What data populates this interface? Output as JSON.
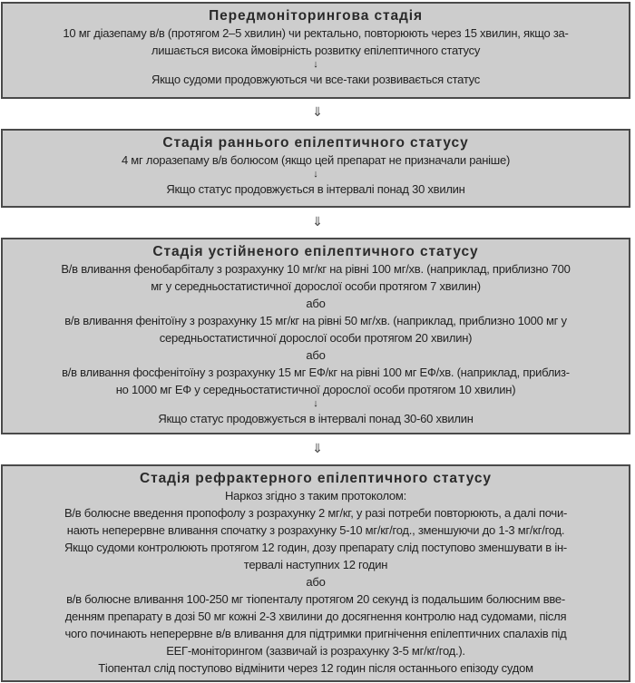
{
  "stages": [
    {
      "title": "Передмоніторингова стадія",
      "lines": [
        "10 мг діазепаму в/в (протягом 2–5 хвилин) чи ректально, повторюють через 15 хвилин, якщо за-",
        "лишається висока ймовірність розвитку епілептичного статусу"
      ],
      "arrow": "↓",
      "condition": "Якщо судоми продовжуються чи все-таки розвивається статус"
    },
    {
      "title": "Стадія раннього епілептичного статусу",
      "lines": [
        "4 мг лоразепаму в/в болюсом (якщо цей препарат не призначали раніше)"
      ],
      "arrow": "↓",
      "condition": "Якщо статус продовжується в інтервалі понад 30 хвилин"
    },
    {
      "title": "Стадія устійненого епілептичного статусу",
      "lines": [
        "В/в вливання фенобарбіталу з розрахунку 10 мг/кг на рівні 100 мг/хв. (наприклад, приблизно 700",
        "мг у середньостатистичної дорослої особи протягом 7 хвилин)",
        "або",
        "в/в вливання фенітоїну з розрахунку 15 мг/кг на рівні 50 мг/хв. (наприклад, приблизно 1000 мг у",
        "середньостатистичної дорослої особи протягом 20 хвилин)",
        "або",
        "в/в вливання фосфенітоїну з розрахунку 15 мг ЕФ/кг на рівні 100 мг ЕФ/хв. (наприклад, приблиз-",
        "но 1000 мг ЕФ у середньостатистичної дорослої особи протягом 10 хвилин)"
      ],
      "arrow": "↓",
      "condition": "Якщо статус продовжується в інтервалі понад 30-60 хвилин"
    },
    {
      "title": "Стадія рефрактерного епілептичного статусу",
      "lines": [
        "Наркоз згідно з таким протоколом:",
        "В/в болюсне введення пропофолу з розрахунку 2 мг/кг, у разі потреби повторюють, а далі почи-",
        "нають неперервне вливання спочатку з розрахунку 5-10 мг/кг/год., зменшуючи до 1-3 мг/кг/год.",
        "Якщо судоми контролюють протягом 12 годин, дозу препарату слід поступово зменшувати в ін-",
        "тервалі наступних 12 годин",
        "або",
        "в/в болюсне вливання 100-250 мг тіопенталу протягом 20 секунд із подальшим болюсним вве-",
        "денням препарату в дозі 50 мг кожні 2-3 хвилини до досягнення контролю над судомами, після",
        "чого починають неперервне в/в вливання для підтримки пригнічення епілептичних спалахів під",
        "ЕЕГ-моніторингом (зазвичай із розрахунку 3-5 мг/кг/год.).",
        "Тіопентал слід поступово відмінити через 12 годин після останнього епізоду судом"
      ]
    }
  ],
  "between_arrow": "⇓"
}
